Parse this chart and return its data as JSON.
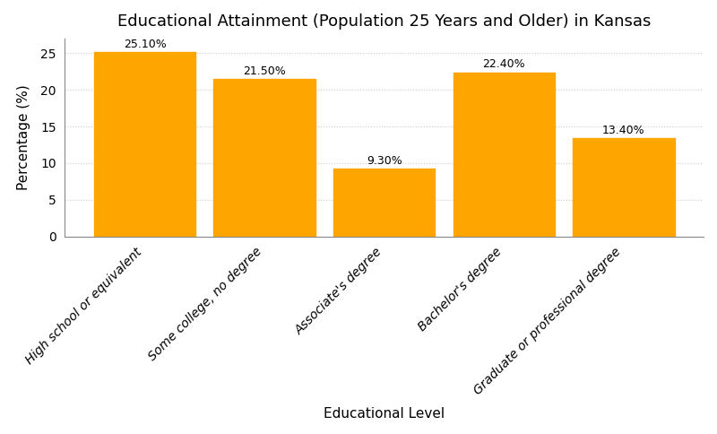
{
  "title": "Educational Attainment (Population 25 Years and Older) in Kansas",
  "xlabel": "Educational Level",
  "ylabel": "Percentage (%)",
  "categories": [
    "High school or equivalent",
    "Some college, no degree",
    "Associate's degree",
    "Bachelor's degree",
    "Graduate or professional degree"
  ],
  "values": [
    25.1,
    21.5,
    9.3,
    22.4,
    13.4
  ],
  "bar_color": "#FFA500",
  "background_color": "#FFFFFF",
  "ylim": [
    0,
    27
  ],
  "yticks": [
    0,
    5,
    10,
    15,
    20,
    25
  ],
  "title_fontsize": 13,
  "axis_label_fontsize": 11,
  "tick_label_fontsize": 10,
  "annotation_fontsize": 9,
  "grid_color": "#CCCCCC",
  "bar_width": 0.85
}
